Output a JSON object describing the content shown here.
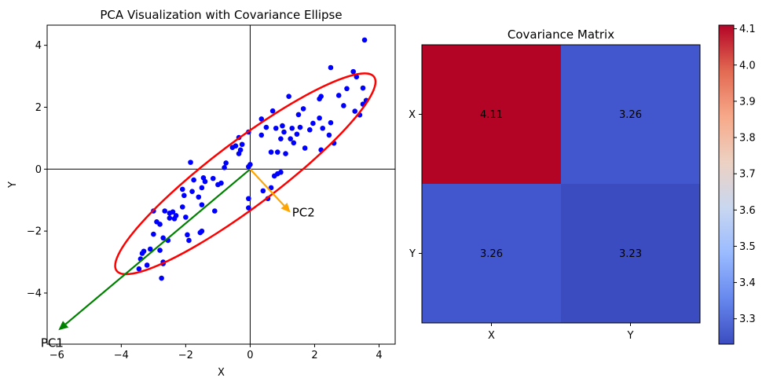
{
  "chart_data": [
    {
      "type": "scatter",
      "title": "PCA Visualization with Covariance Ellipse",
      "xlabel": "X",
      "ylabel": "Y",
      "xlim": [
        -6.3,
        4.5
      ],
      "ylim": [
        -5.65,
        4.65
      ],
      "xticks": [
        -6,
        -4,
        -2,
        0,
        2,
        4
      ],
      "xtick_labels": [
        "−6",
        "−4",
        "−2",
        "0",
        "2",
        "4"
      ],
      "yticks": [
        -4,
        -2,
        0,
        2,
        4
      ],
      "ytick_labels": [
        "−4",
        "−2",
        "0",
        "2",
        "4"
      ],
      "point_color": "#0000ff",
      "points": [
        [
          3.55,
          4.17
        ],
        [
          2.5,
          3.28
        ],
        [
          3.2,
          3.15
        ],
        [
          3.3,
          2.98
        ],
        [
          3.6,
          2.22
        ],
        [
          3.5,
          2.1
        ],
        [
          3.4,
          1.75
        ],
        [
          3.5,
          2.62
        ],
        [
          3.25,
          1.87
        ],
        [
          3.0,
          2.6
        ],
        [
          2.9,
          2.05
        ],
        [
          2.75,
          2.38
        ],
        [
          2.6,
          0.84
        ],
        [
          2.5,
          1.5
        ],
        [
          2.45,
          1.1
        ],
        [
          2.25,
          1.32
        ],
        [
          2.2,
          2.35
        ],
        [
          2.15,
          2.27
        ],
        [
          2.2,
          0.62
        ],
        [
          2.15,
          1.65
        ],
        [
          1.95,
          1.48
        ],
        [
          1.85,
          1.27
        ],
        [
          1.7,
          0.68
        ],
        [
          1.65,
          1.95
        ],
        [
          1.55,
          1.35
        ],
        [
          1.5,
          1.76
        ],
        [
          1.45,
          1.13
        ],
        [
          1.35,
          0.85
        ],
        [
          1.3,
          1.32
        ],
        [
          1.25,
          0.98
        ],
        [
          1.2,
          2.35
        ],
        [
          1.1,
          0.5
        ],
        [
          1.05,
          1.2
        ],
        [
          1.0,
          1.4
        ],
        [
          0.95,
          0.98
        ],
        [
          0.8,
          1.32
        ],
        [
          0.7,
          1.88
        ],
        [
          0.65,
          0.55
        ],
        [
          0.5,
          1.35
        ],
        [
          0.35,
          1.1
        ],
        [
          0.35,
          1.62
        ],
        [
          0.85,
          0.55
        ],
        [
          0.95,
          -0.1
        ],
        [
          0.85,
          -0.15
        ],
        [
          0.75,
          -0.22
        ],
        [
          0.65,
          -0.6
        ],
        [
          0.55,
          -0.95
        ],
        [
          0.4,
          -0.7
        ],
        [
          -0.05,
          0.08
        ],
        [
          0.0,
          0.15
        ],
        [
          -0.05,
          1.2
        ],
        [
          -0.25,
          0.8
        ],
        [
          -0.35,
          1.02
        ],
        [
          -0.3,
          0.62
        ],
        [
          -0.35,
          0.5
        ],
        [
          -0.45,
          0.75
        ],
        [
          -0.55,
          0.7
        ],
        [
          -0.75,
          0.2
        ],
        [
          -0.8,
          0.05
        ],
        [
          -0.9,
          -0.45
        ],
        [
          -1.0,
          -0.5
        ],
        [
          -1.1,
          -1.35
        ],
        [
          -1.4,
          -0.4
        ],
        [
          -1.5,
          -0.6
        ],
        [
          -1.45,
          -0.28
        ],
        [
          -1.75,
          -0.35
        ],
        [
          -1.5,
          -2.0
        ],
        [
          -1.55,
          -2.05
        ],
        [
          -1.5,
          -1.15
        ],
        [
          -1.6,
          -0.9
        ],
        [
          -1.8,
          -0.72
        ],
        [
          -1.9,
          -2.3
        ],
        [
          -1.95,
          -2.12
        ],
        [
          -2.0,
          -1.55
        ],
        [
          -2.1,
          -0.65
        ],
        [
          -2.05,
          -0.85
        ],
        [
          -2.1,
          -1.22
        ],
        [
          -2.3,
          -1.5
        ],
        [
          -2.35,
          -1.6
        ],
        [
          -2.5,
          -1.42
        ],
        [
          -2.5,
          -1.58
        ],
        [
          -2.4,
          -1.38
        ],
        [
          -2.55,
          -2.3
        ],
        [
          -2.7,
          -2.22
        ],
        [
          -2.8,
          -2.62
        ],
        [
          -2.7,
          -3.0
        ],
        [
          -2.7,
          -3.05
        ],
        [
          -2.65,
          -1.35
        ],
        [
          -2.75,
          -3.52
        ],
        [
          -2.8,
          -1.78
        ],
        [
          -2.9,
          -1.7
        ],
        [
          -3.0,
          -1.35
        ],
        [
          -3.0,
          -2.1
        ],
        [
          -3.1,
          -2.58
        ],
        [
          -3.2,
          -3.1
        ],
        [
          -3.3,
          -2.65
        ],
        [
          -3.35,
          -2.72
        ],
        [
          -3.4,
          -2.9
        ],
        [
          -3.45,
          -3.22
        ],
        [
          -1.85,
          0.22
        ],
        [
          -0.05,
          -0.95
        ],
        [
          -0.05,
          -1.25
        ],
        [
          -1.15,
          -0.3
        ]
      ],
      "ellipse": {
        "center": [
          -0.15,
          -0.15
        ],
        "width": 10.0,
        "height": 2.1,
        "angle_deg": 37,
        "color": "#ff0000"
      },
      "vectors": [
        {
          "label": "PC1",
          "from": [
            0,
            0
          ],
          "to": [
            -5.95,
            -5.2
          ],
          "color": "#008000"
        },
        {
          "label": "PC2",
          "from": [
            0,
            0
          ],
          "to": [
            1.25,
            -1.4
          ],
          "color": "#ffa500"
        }
      ],
      "axis_lines": {
        "x": 0,
        "y": 0
      }
    },
    {
      "type": "heatmap",
      "title": "Covariance Matrix",
      "x_labels": [
        "X",
        "Y"
      ],
      "y_labels": [
        "X",
        "Y"
      ],
      "values": [
        [
          4.11,
          3.26
        ],
        [
          3.26,
          3.23
        ]
      ],
      "value_labels": [
        [
          "4.11",
          "3.26"
        ],
        [
          "3.26",
          "3.23"
        ]
      ],
      "colormap": "coolwarm",
      "cell_colors": [
        [
          "#b40426",
          "#4257ce"
        ],
        [
          "#4257ce",
          "#3b4cc0"
        ]
      ],
      "colorbar": {
        "range": [
          3.23,
          4.11
        ],
        "ticks": [
          3.3,
          3.4,
          3.5,
          3.6,
          3.7,
          3.8,
          3.9,
          4.0,
          4.1
        ],
        "tick_labels": [
          "3.3",
          "3.4",
          "3.5",
          "3.6",
          "3.7",
          "3.8",
          "3.9",
          "4.0",
          "4.1"
        ],
        "colors": [
          "#3b4cc0",
          "#6788ee",
          "#9abbff",
          "#c9d7f0",
          "#edd1c2",
          "#f7a889",
          "#e26952",
          "#b40426"
        ]
      }
    }
  ]
}
